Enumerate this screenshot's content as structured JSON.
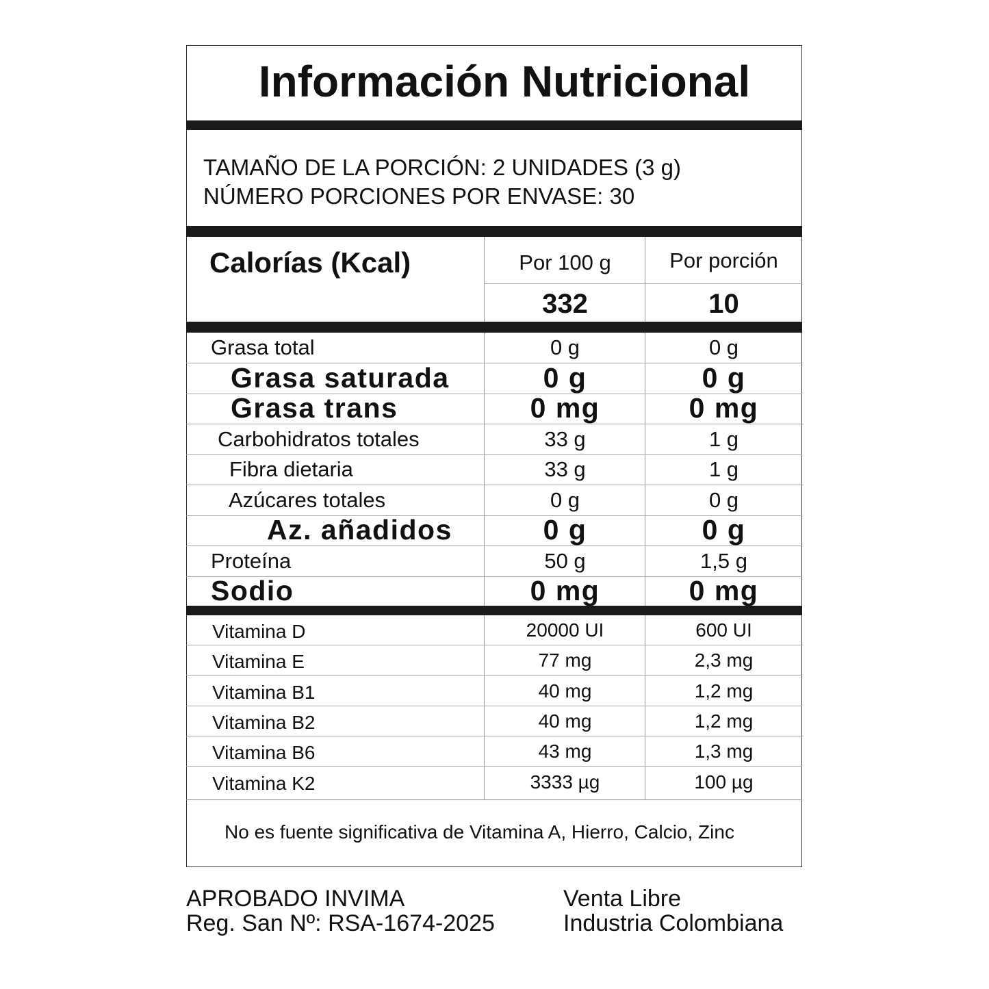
{
  "title": "Información Nutricional",
  "serving": {
    "size": "TAMAÑO DE LA PORCIÓN: 2 UNIDADES (3 g)",
    "per_container": "NÚMERO PORCIONES POR ENVASE: 30"
  },
  "calories": {
    "label": "Calorías (Kcal)",
    "col1_header": "Por 100 g",
    "col2_header": "Por porción",
    "per_100g": "332",
    "per_portion": "10"
  },
  "nutrients": [
    {
      "name": "Grasa total",
      "per_100g": "0 g",
      "per_portion": "0 g",
      "emphasis": false
    },
    {
      "name": "Grasa saturada",
      "per_100g": "0 g",
      "per_portion": "0 g",
      "emphasis": true
    },
    {
      "name": "Grasa trans",
      "per_100g": "0 mg",
      "per_portion": "0 mg",
      "emphasis": true
    },
    {
      "name": "Carbohidratos totales",
      "per_100g": "33 g",
      "per_portion": "1 g",
      "emphasis": false
    },
    {
      "name": "Fibra dietaria",
      "per_100g": "33 g",
      "per_portion": "1 g",
      "emphasis": false
    },
    {
      "name": "Azúcares totales",
      "per_100g": "0 g",
      "per_portion": "0 g",
      "emphasis": false
    },
    {
      "name": "Az. añadidos",
      "per_100g": "0 g",
      "per_portion": "0 g",
      "emphasis": true
    },
    {
      "name": "Proteína",
      "per_100g": "50 g",
      "per_portion": "1,5 g",
      "emphasis": false
    },
    {
      "name": "Sodio",
      "per_100g": "0 mg",
      "per_portion": "0 mg",
      "emphasis": true
    }
  ],
  "vitamins": [
    {
      "name": "Vitamina D",
      "per_100g": "20000 UI",
      "per_portion": "600 UI"
    },
    {
      "name": "Vitamina E",
      "per_100g": "77 mg",
      "per_portion": "2,3 mg"
    },
    {
      "name": "Vitamina B1",
      "per_100g": "40 mg",
      "per_portion": "1,2 mg"
    },
    {
      "name": "Vitamina B2",
      "per_100g": "40 mg",
      "per_portion": "1,2 mg"
    },
    {
      "name": "Vitamina B6",
      "per_100g": "43 mg",
      "per_portion": "1,3 mg"
    },
    {
      "name": "Vitamina K2",
      "per_100g": "3333 µg",
      "per_portion": "100 µg"
    }
  ],
  "footnote": "No es fuente significativa de Vitamina A, Hierro, Calcio, Zinc",
  "footer": {
    "approval": "APROBADO INVIMA",
    "registration": "Reg. San Nº: RSA-1674-2025",
    "sale": "Venta Libre",
    "origin": "Industria Colombiana"
  }
}
